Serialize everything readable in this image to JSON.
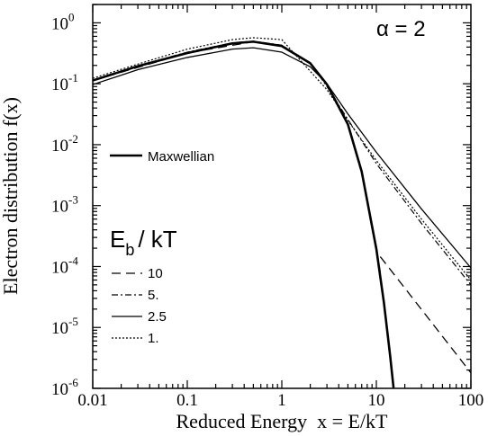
{
  "chart_data": {
    "type": "line",
    "xlabel": "Reduced Energy  x = E/kT",
    "ylabel": "Electron distribution f(x)",
    "xscale": "log",
    "yscale": "log",
    "xlim": [
      0.01,
      100
    ],
    "ylim": [
      1e-06,
      2
    ],
    "x_ticks": [
      {
        "value": 0.01,
        "label": "0.01"
      },
      {
        "value": 0.1,
        "label": "0.1"
      },
      {
        "value": 1,
        "label": "1"
      },
      {
        "value": 10,
        "label": "10"
      },
      {
        "value": 100,
        "label": "100"
      }
    ],
    "y_ticks": [
      {
        "value": 1,
        "base": "10",
        "exp": "0"
      },
      {
        "value": 0.1,
        "base": "10",
        "exp": "-1"
      },
      {
        "value": 0.01,
        "base": "10",
        "exp": "-2"
      },
      {
        "value": 0.001,
        "base": "10",
        "exp": "-3"
      },
      {
        "value": 0.0001,
        "base": "10",
        "exp": "-4"
      },
      {
        "value": 1e-05,
        "base": "10",
        "exp": "-5"
      },
      {
        "value": 1e-06,
        "base": "10",
        "exp": "-6"
      }
    ],
    "annotation": {
      "symbol": "α",
      "text": " = 2"
    },
    "legend_title": {
      "main": "E",
      "sub": "b",
      "rest": "/ kT"
    },
    "maxwellian_label": "Maxwellian",
    "series": [
      {
        "name": "Maxwellian",
        "style": "solid-thick",
        "x": [
          0.01,
          0.03,
          0.1,
          0.3,
          0.5,
          1,
          2,
          3,
          5,
          7,
          10,
          12,
          14,
          15.2
        ],
        "y": [
          0.113,
          0.194,
          0.319,
          0.46,
          0.49,
          0.416,
          0.217,
          0.0976,
          0.0216,
          0.0036,
          0.000194,
          2.62e-05,
          3.4e-06,
          1.02e-06
        ]
      },
      {
        "name": "10",
        "style": "dashed",
        "x": [
          0.01,
          0.1,
          0.5,
          1,
          2,
          3,
          5,
          7,
          10,
          11
        ],
        "y": [
          0.113,
          0.32,
          0.49,
          0.42,
          0.22,
          0.1,
          0.022,
          0.0036,
          0.000194,
          8.06e-05
        ],
        "tail_x": [
          11,
          100
        ],
        "tail_y": [
          0.000145,
          1.8e-06
        ]
      },
      {
        "name": "5.",
        "style": "dashdot",
        "x": [
          0.01,
          0.03,
          0.1,
          0.3,
          0.5,
          1,
          2,
          3,
          5,
          10,
          30,
          100
        ],
        "y": [
          0.115,
          0.198,
          0.33,
          0.47,
          0.5,
          0.43,
          0.22,
          0.09,
          0.026,
          0.0049,
          0.00051,
          5e-05
        ]
      },
      {
        "name": "2.5",
        "style": "solid-thin",
        "x": [
          0.01,
          0.03,
          0.1,
          0.3,
          0.5,
          1,
          2,
          3,
          5,
          10,
          30,
          100
        ],
        "y": [
          0.097,
          0.17,
          0.27,
          0.37,
          0.39,
          0.33,
          0.19,
          0.1,
          0.032,
          0.0075,
          0.00088,
          9.5e-05
        ]
      },
      {
        "name": "1.",
        "style": "dotted",
        "x": [
          0.01,
          0.03,
          0.1,
          0.3,
          0.5,
          1,
          2,
          3,
          5,
          10,
          30,
          100
        ],
        "y": [
          0.123,
          0.21,
          0.37,
          0.53,
          0.57,
          0.53,
          0.16,
          0.08,
          0.025,
          0.0055,
          0.0006,
          6e-05
        ]
      }
    ]
  }
}
